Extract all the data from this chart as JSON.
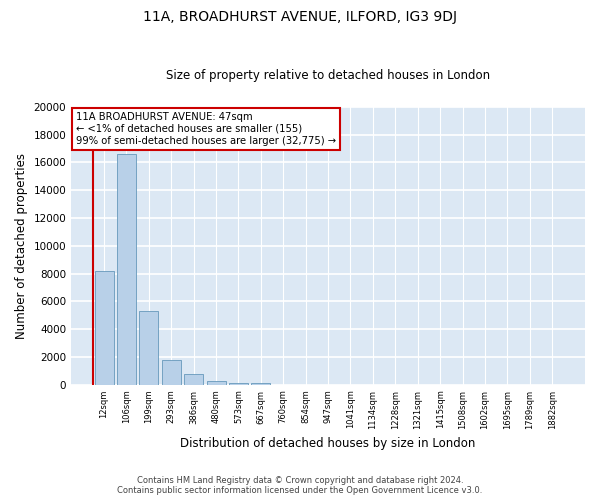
{
  "title": "11A, BROADHURST AVENUE, ILFORD, IG3 9DJ",
  "subtitle": "Size of property relative to detached houses in London",
  "xlabel": "Distribution of detached houses by size in London",
  "ylabel": "Number of detached properties",
  "bar_values": [
    8200,
    16600,
    5300,
    1750,
    750,
    250,
    150,
    100,
    0,
    0,
    0,
    0,
    0,
    0,
    0,
    0,
    0,
    0,
    0,
    0,
    0
  ],
  "bar_labels": [
    "12sqm",
    "106sqm",
    "199sqm",
    "293sqm",
    "386sqm",
    "480sqm",
    "573sqm",
    "667sqm",
    "760sqm",
    "854sqm",
    "947sqm",
    "1041sqm",
    "1134sqm",
    "1228sqm",
    "1321sqm",
    "1415sqm",
    "1508sqm",
    "1602sqm",
    "1695sqm",
    "1789sqm",
    "1882sqm"
  ],
  "bar_color": "#b8d0e8",
  "bar_edge_color": "#6699bb",
  "background_color": "#dce8f4",
  "grid_color": "#ffffff",
  "annotation_box_color": "#ffffff",
  "annotation_border_color": "#cc0000",
  "property_line_color": "#cc0000",
  "annotation_line1": "11A BROADHURST AVENUE: 47sqm",
  "annotation_line2": "← <1% of detached houses are smaller (155)",
  "annotation_line3": "99% of semi-detached houses are larger (32,775) →",
  "ylim": [
    0,
    20000
  ],
  "yticks": [
    0,
    2000,
    4000,
    6000,
    8000,
    10000,
    12000,
    14000,
    16000,
    18000,
    20000
  ],
  "footer_line1": "Contains HM Land Registry data © Crown copyright and database right 2024.",
  "footer_line2": "Contains public sector information licensed under the Open Government Licence v3.0."
}
